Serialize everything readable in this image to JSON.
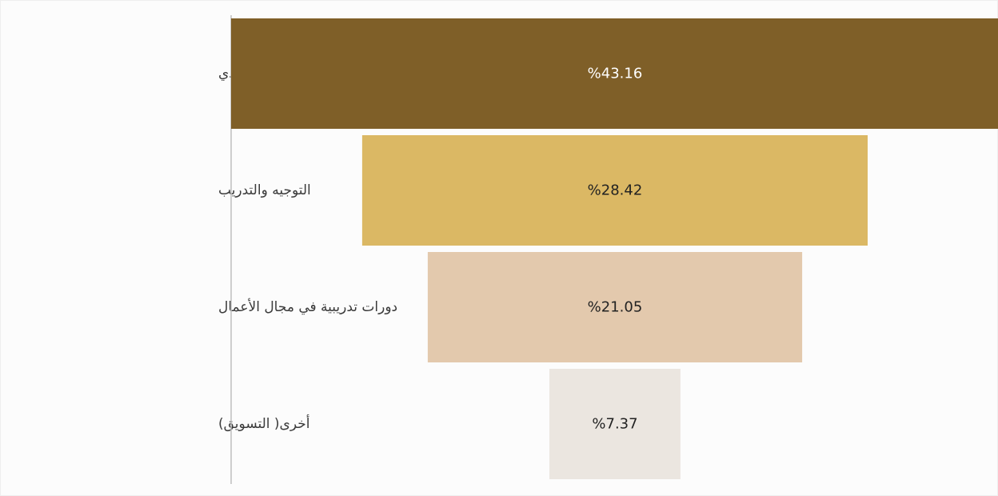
{
  "chart_data": {
    "type": "bar",
    "subtype": "funnel",
    "orientation": "horizontal",
    "centered": true,
    "categories": [
      "الدعم المادي",
      "التوجيه والتدريب",
      "دورات تدريبية في مجال الأعمال",
      "أخرى( التسويق)"
    ],
    "values": [
      43.16,
      28.42,
      21.05,
      7.37
    ],
    "value_labels": [
      "%43.16",
      "%28.42",
      "%21.05",
      "%7.37"
    ],
    "unit": "%",
    "colors": [
      "#7f5f28",
      "#dbb864",
      "#e3c9ad",
      "#ebe6e0"
    ],
    "label_colors": [
      "#ffffff",
      "#222222",
      "#222222",
      "#222222"
    ],
    "axis_color": "#bfbfbf",
    "grid": false,
    "legend": "none"
  }
}
